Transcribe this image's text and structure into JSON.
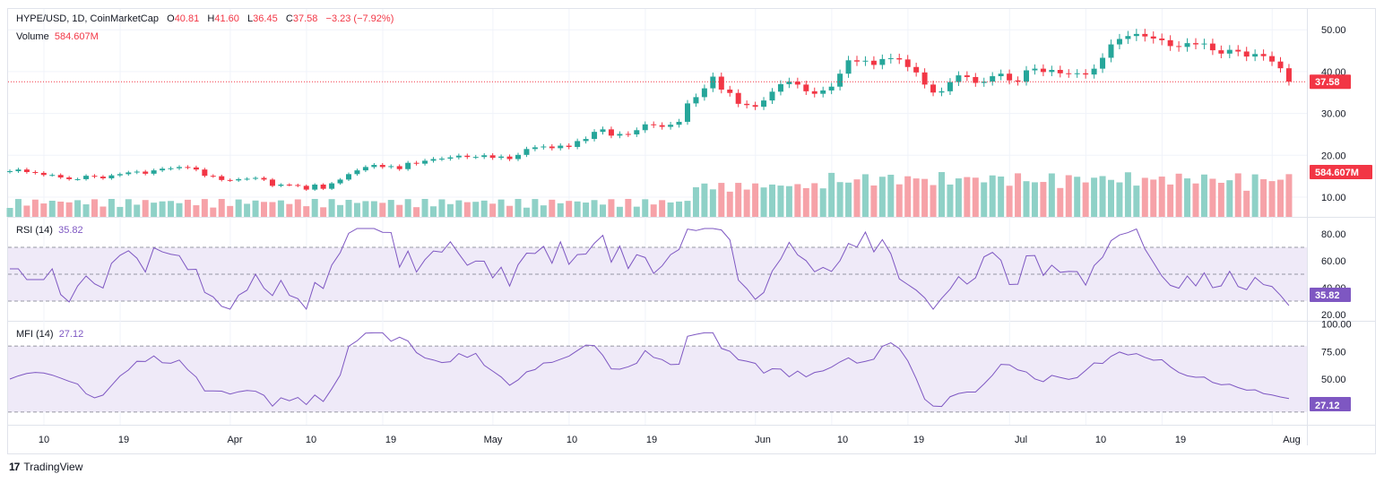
{
  "header": {
    "symbol": "HYPE/USD, 1D, CoinMarketCap",
    "o_label": "O",
    "o_value": "40.81",
    "h_label": "H",
    "h_value": "41.60",
    "l_label": "L",
    "l_value": "36.45",
    "c_label": "C",
    "c_value": "37.58",
    "change": "−3.23 (−7.92%)",
    "volume_label": "Volume",
    "volume_value": "584.607M"
  },
  "rsi_legend": {
    "label": "RSI (14)",
    "value": "35.82"
  },
  "mfi_legend": {
    "label": "MFI (14)",
    "value": "27.12"
  },
  "brand": {
    "logo": "17",
    "name": "TradingView"
  },
  "colors": {
    "up": "#26a69a",
    "down": "#f23645",
    "vol_up": "#8fd1c7",
    "vol_down": "#f6a2a8",
    "indicator": "#7e57c2",
    "band": "#efeaf8",
    "price_line": "#f23645"
  },
  "chart_data": [
    {
      "type": "candlestick",
      "title": "HYPE/USD, 1D, CoinMarketCap",
      "x_ticks": [
        "10",
        "19",
        "Apr",
        "10",
        "19",
        "May",
        "10",
        "19",
        "Jun",
        "10",
        "19",
        "Jul",
        "10",
        "19",
        "Aug"
      ],
      "y_ticks": [
        "10.00",
        "20.00",
        "30.00",
        "40.00",
        "50.00"
      ],
      "ylim": [
        7,
        52
      ],
      "last_price": "37.58",
      "close": [
        16.2,
        16.6,
        16.0,
        15.8,
        15.3,
        15.3,
        14.7,
        14.3,
        14.3,
        15.1,
        14.9,
        14.5,
        15.2,
        15.5,
        15.9,
        16.1,
        15.6,
        16.4,
        16.8,
        16.9,
        17.2,
        17.1,
        16.6,
        15.1,
        15.0,
        14.1,
        14.0,
        14.3,
        14.4,
        14.6,
        14.2,
        12.7,
        13.0,
        12.9,
        12.7,
        11.8,
        13.0,
        12.0,
        13.3,
        14.2,
        15.5,
        16.4,
        17.2,
        17.7,
        17.2,
        17.4,
        16.7,
        18.2,
        18.0,
        18.7,
        19.1,
        19.2,
        19.5,
        19.9,
        19.6,
        19.6,
        20.0,
        19.4,
        19.7,
        19.1,
        20.1,
        21.5,
        21.9,
        22.1,
        21.7,
        22.3,
        22.0,
        23.4,
        23.9,
        25.6,
        26.2,
        24.7,
        25.1,
        25.0,
        26.0,
        27.4,
        27.2,
        26.8,
        27.3,
        28.0,
        32.4,
        33.9,
        36.0,
        38.8,
        35.7,
        34.9,
        32.3,
        32.0,
        31.6,
        33.1,
        35.2,
        37.0,
        37.6,
        36.9,
        35.3,
        34.7,
        35.5,
        36.4,
        39.5,
        42.7,
        42.4,
        42.6,
        41.6,
        43.0,
        43.2,
        42.9,
        41.1,
        39.8,
        36.9,
        35.0,
        35.3,
        37.5,
        39.1,
        38.7,
        37.3,
        37.6,
        38.9,
        39.5,
        37.9,
        37.6,
        40.3,
        40.7,
        39.9,
        40.4,
        39.6,
        39.5,
        39.6,
        39.3,
        40.7,
        43.3,
        46.5,
        47.8,
        48.5,
        49.0,
        48.4,
        47.9,
        47.5,
        46.1,
        45.9,
        46.8,
        46.5,
        46.7,
        45.1,
        44.3,
        45.2,
        44.8,
        43.6,
        44.2,
        43.7,
        42.4,
        40.8,
        37.6
      ],
      "volume": {
        "unit": "M",
        "last": "584.607M"
      }
    },
    {
      "type": "line",
      "title": "RSI (14)",
      "y_ticks": [
        "20.00",
        "40.00",
        "60.00",
        "80.00"
      ],
      "ylim": [
        14,
        88
      ],
      "bands": [
        30,
        50,
        70
      ],
      "last": "35.82"
    },
    {
      "type": "line",
      "title": "MFI (14)",
      "y_ticks": [
        "50.00",
        "75.00",
        "100.00"
      ],
      "ylim": [
        16,
        103
      ],
      "bands": [
        20,
        80
      ],
      "last": "27.12"
    }
  ]
}
